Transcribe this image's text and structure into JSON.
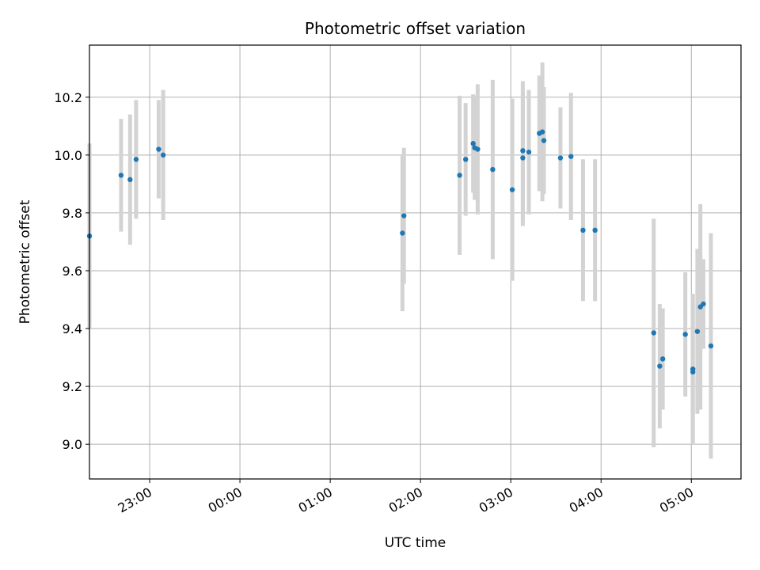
{
  "chart_data": {
    "type": "scatter",
    "title": "Photometric offset variation",
    "xlabel": "UTC time",
    "ylabel": "Photometric offset",
    "x_axis": {
      "kind": "time",
      "ticks": [
        "23:00",
        "00:00",
        "01:00",
        "02:00",
        "03:00",
        "04:00",
        "05:00"
      ],
      "range": [
        "22:20",
        "05:33"
      ]
    },
    "ylim": [
      8.88,
      10.38
    ],
    "yticks": [
      "9.0",
      "9.2",
      "9.4",
      "9.6",
      "9.8",
      "10.0",
      "10.2"
    ],
    "grid": true,
    "colors": {
      "points": "#1f77b4",
      "errorbars": "#d3d3d3",
      "grid": "#b0b0b0"
    },
    "series": [
      {
        "points": [
          {
            "x": "22:20",
            "y": 9.72,
            "err": 0.32
          },
          {
            "x": "22:41",
            "y": 9.93,
            "err": 0.195
          },
          {
            "x": "22:47",
            "y": 9.915,
            "err": 0.225
          },
          {
            "x": "22:51",
            "y": 9.985,
            "err": 0.205
          },
          {
            "x": "23:06",
            "y": 10.02,
            "err": 0.17
          },
          {
            "x": "23:09",
            "y": 10.0,
            "err": 0.225
          },
          {
            "x": "01:48",
            "y": 9.73,
            "err": 0.27
          },
          {
            "x": "01:49",
            "y": 9.79,
            "err": 0.235
          },
          {
            "x": "02:26",
            "y": 9.93,
            "err": 0.275
          },
          {
            "x": "02:30",
            "y": 9.985,
            "err": 0.195
          },
          {
            "x": "02:35",
            "y": 10.04,
            "err": 0.17
          },
          {
            "x": "02:36",
            "y": 10.025,
            "err": 0.18
          },
          {
            "x": "02:38",
            "y": 10.02,
            "err": 0.225
          },
          {
            "x": "02:48",
            "y": 9.95,
            "err": 0.31
          },
          {
            "x": "03:01",
            "y": 9.88,
            "err": 0.315
          },
          {
            "x": "03:08",
            "y": 10.015,
            "err": 0.24
          },
          {
            "x": "03:08",
            "y": 9.99,
            "err": 0.235
          },
          {
            "x": "03:12",
            "y": 10.01,
            "err": 0.215
          },
          {
            "x": "03:19",
            "y": 10.075,
            "err": 0.2
          },
          {
            "x": "03:21",
            "y": 10.08,
            "err": 0.24
          },
          {
            "x": "03:22",
            "y": 10.05,
            "err": 0.185
          },
          {
            "x": "03:33",
            "y": 9.99,
            "err": 0.175
          },
          {
            "x": "03:40",
            "y": 9.995,
            "err": 0.22
          },
          {
            "x": "03:48",
            "y": 9.74,
            "err": 0.245
          },
          {
            "x": "03:56",
            "y": 9.74,
            "err": 0.245
          },
          {
            "x": "04:35",
            "y": 9.385,
            "err": 0.395
          },
          {
            "x": "04:39",
            "y": 9.27,
            "err": 0.215
          },
          {
            "x": "04:41",
            "y": 9.295,
            "err": 0.175
          },
          {
            "x": "04:56",
            "y": 9.38,
            "err": 0.215
          },
          {
            "x": "05:01",
            "y": 9.25,
            "err": 0.25
          },
          {
            "x": "05:01",
            "y": 9.26,
            "err": 0.26
          },
          {
            "x": "05:04",
            "y": 9.39,
            "err": 0.285
          },
          {
            "x": "05:06",
            "y": 9.475,
            "err": 0.355
          },
          {
            "x": "05:08",
            "y": 9.485,
            "err": 0.155
          },
          {
            "x": "05:13",
            "y": 9.34,
            "err": 0.39
          }
        ]
      }
    ]
  }
}
